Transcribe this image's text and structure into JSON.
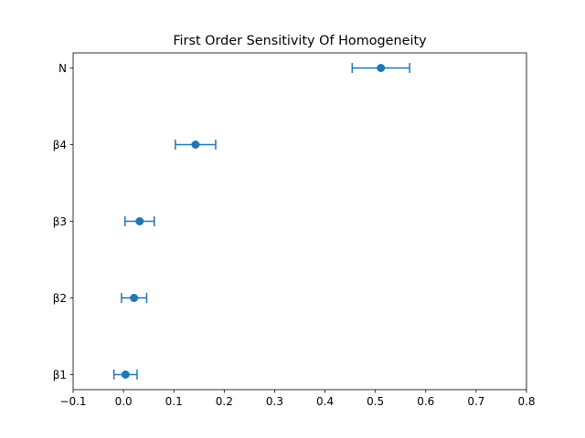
{
  "chart_data": {
    "type": "scatter",
    "title": "First Order Sensitivity Of Homogeneity",
    "xlabel": "",
    "ylabel": "",
    "xlim": [
      -0.1,
      0.8
    ],
    "xticks": [
      -0.1,
      0.0,
      0.1,
      0.2,
      0.3,
      0.4,
      0.5,
      0.6,
      0.7,
      0.8
    ],
    "xtick_labels": [
      "−0.1",
      "0.0",
      "0.1",
      "0.2",
      "0.3",
      "0.4",
      "0.5",
      "0.6",
      "0.7",
      "0.8"
    ],
    "categories": [
      "β1",
      "β2",
      "β3",
      "β4",
      "N"
    ],
    "series": [
      {
        "values": [
          0.004,
          0.021,
          0.032,
          0.143,
          0.511
        ],
        "errors": [
          0.023,
          0.025,
          0.029,
          0.04,
          0.057
        ]
      }
    ],
    "color": "#1f77b4",
    "grid": false,
    "legend": "none"
  }
}
